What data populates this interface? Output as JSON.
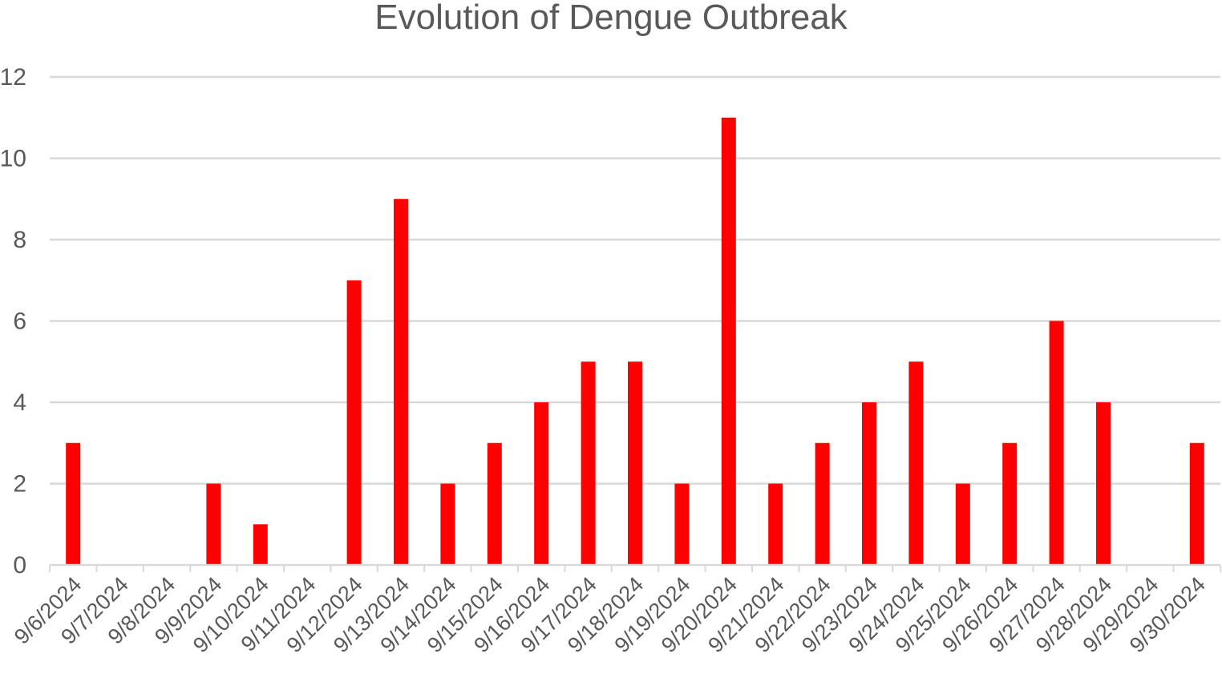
{
  "chart_data": {
    "type": "bar",
    "title": "Evolution of Dengue Outbreak",
    "xlabel": "",
    "ylabel": "",
    "categories": [
      "9/6/2024",
      "9/7/2024",
      "9/8/2024",
      "9/9/2024",
      "9/10/2024",
      "9/11/2024",
      "9/12/2024",
      "9/13/2024",
      "9/14/2024",
      "9/15/2024",
      "9/16/2024",
      "9/17/2024",
      "9/18/2024",
      "9/19/2024",
      "9/20/2024",
      "9/21/2024",
      "9/22/2024",
      "9/23/2024",
      "9/24/2024",
      "9/25/2024",
      "9/26/2024",
      "9/27/2024",
      "9/28/2024",
      "9/29/2024",
      "9/30/2024"
    ],
    "values": [
      3,
      0,
      0,
      2,
      1,
      0,
      7,
      9,
      2,
      3,
      4,
      5,
      5,
      2,
      11,
      2,
      3,
      4,
      5,
      2,
      3,
      6,
      4,
      0,
      3
    ],
    "ylim": [
      0,
      12
    ],
    "yticks": [
      0,
      2,
      4,
      6,
      8,
      10,
      12
    ],
    "grid": true,
    "legend": "none",
    "bar_color": "#ff0000",
    "grid_color": "#d9d9d9",
    "text_color": "#595959"
  }
}
